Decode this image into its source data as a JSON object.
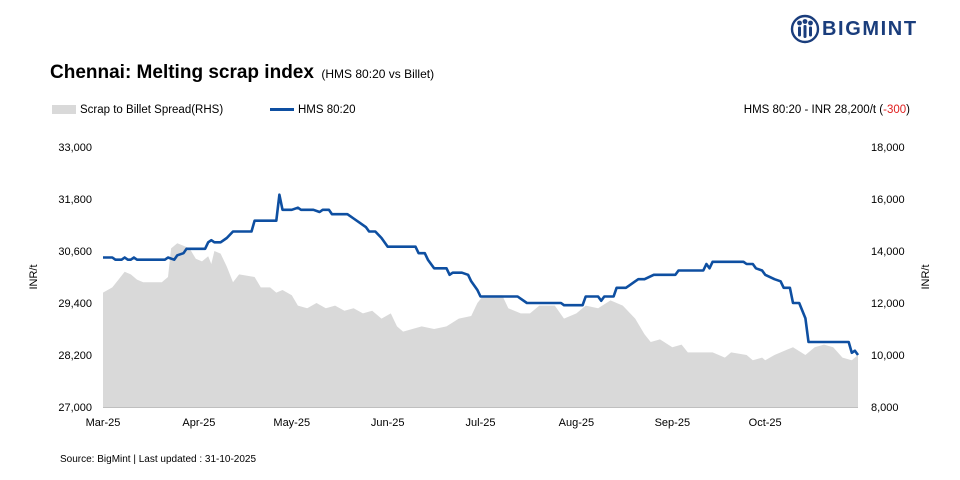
{
  "brand": {
    "name": "BIGMINT",
    "icon": "bigmint-logo-icon",
    "color": "#1a3d7c"
  },
  "title": {
    "main": "Chennai: Melting scrap index",
    "sub": "(HMS 80:20 vs Billet)"
  },
  "legend": {
    "area_label": "Scrap to Billet Spread(RHS)",
    "line_label": "HMS 80:20"
  },
  "price_note": {
    "prefix": "HMS 80:20 - INR 28,200/t (",
    "change": "-300",
    "suffix": ")"
  },
  "source": "Source: BigMint | Last updated : 31-10-2025",
  "colors": {
    "line": "#0e4fa1",
    "area": "#d9d9d9",
    "negative": "#e02020"
  },
  "chart_data": {
    "type": "line",
    "x_ticks": [
      "Mar-25",
      "Apr-25",
      "May-25",
      "Jun-25",
      "Jul-25",
      "Aug-25",
      "Sep-25",
      "Oct-25"
    ],
    "y_left": {
      "label": "INR/t",
      "ylim": [
        27000,
        33000
      ],
      "ticks": [
        "27,000",
        "28,200",
        "29,400",
        "30,600",
        "31,800",
        "33,000"
      ]
    },
    "y_right": {
      "label": "INR/t",
      "ylim": [
        8000,
        18000
      ],
      "ticks": [
        "8,000",
        "10,000",
        "12,000",
        "14,000",
        "16,000",
        "18,000"
      ]
    },
    "series": [
      {
        "name": "HMS 80:20",
        "axis": "left",
        "kind": "line",
        "points": [
          [
            "2025-03-01",
            30450
          ],
          [
            "2025-03-04",
            30450
          ],
          [
            "2025-03-05",
            30400
          ],
          [
            "2025-03-07",
            30400
          ],
          [
            "2025-03-08",
            30450
          ],
          [
            "2025-03-09",
            30400
          ],
          [
            "2025-03-10",
            30400
          ],
          [
            "2025-03-11",
            30450
          ],
          [
            "2025-03-12",
            30400
          ],
          [
            "2025-03-21",
            30400
          ],
          [
            "2025-03-22",
            30450
          ],
          [
            "2025-03-24",
            30400
          ],
          [
            "2025-03-25",
            30500
          ],
          [
            "2025-03-27",
            30550
          ],
          [
            "2025-03-28",
            30650
          ],
          [
            "2025-04-03",
            30650
          ],
          [
            "2025-04-04",
            30800
          ],
          [
            "2025-04-05",
            30850
          ],
          [
            "2025-04-06",
            30800
          ],
          [
            "2025-04-08",
            30800
          ],
          [
            "2025-04-10",
            30900
          ],
          [
            "2025-04-12",
            31050
          ],
          [
            "2025-04-18",
            31050
          ],
          [
            "2025-04-19",
            31300
          ],
          [
            "2025-04-26",
            31300
          ],
          [
            "2025-04-27",
            31900
          ],
          [
            "2025-04-28",
            31550
          ],
          [
            "2025-05-01",
            31550
          ],
          [
            "2025-05-03",
            31600
          ],
          [
            "2025-05-04",
            31550
          ],
          [
            "2025-05-08",
            31550
          ],
          [
            "2025-05-10",
            31500
          ],
          [
            "2025-05-11",
            31550
          ],
          [
            "2025-05-13",
            31550
          ],
          [
            "2025-05-14",
            31450
          ],
          [
            "2025-05-19",
            31450
          ],
          [
            "2025-05-20",
            31400
          ],
          [
            "2025-05-21",
            31350
          ],
          [
            "2025-05-23",
            31250
          ],
          [
            "2025-05-25",
            31150
          ],
          [
            "2025-05-26",
            31050
          ],
          [
            "2025-05-28",
            31050
          ],
          [
            "2025-05-30",
            30900
          ],
          [
            "2025-06-01",
            30700
          ],
          [
            "2025-06-10",
            30700
          ],
          [
            "2025-06-11",
            30550
          ],
          [
            "2025-06-13",
            30550
          ],
          [
            "2025-06-14",
            30400
          ],
          [
            "2025-06-16",
            30200
          ],
          [
            "2025-06-20",
            30200
          ],
          [
            "2025-06-21",
            30050
          ],
          [
            "2025-06-22",
            30100
          ],
          [
            "2025-06-25",
            30100
          ],
          [
            "2025-06-27",
            30050
          ],
          [
            "2025-06-28",
            29900
          ],
          [
            "2025-06-30",
            29700
          ],
          [
            "2025-07-01",
            29550
          ],
          [
            "2025-07-13",
            29550
          ],
          [
            "2025-07-14",
            29500
          ],
          [
            "2025-07-16",
            29400
          ],
          [
            "2025-07-27",
            29400
          ],
          [
            "2025-07-28",
            29350
          ],
          [
            "2025-08-03",
            29350
          ],
          [
            "2025-08-04",
            29550
          ],
          [
            "2025-08-08",
            29550
          ],
          [
            "2025-08-09",
            29450
          ],
          [
            "2025-08-10",
            29550
          ],
          [
            "2025-08-13",
            29550
          ],
          [
            "2025-08-14",
            29750
          ],
          [
            "2025-08-17",
            29750
          ],
          [
            "2025-08-18",
            29800
          ],
          [
            "2025-08-20",
            29900
          ],
          [
            "2025-08-21",
            29950
          ],
          [
            "2025-08-23",
            29950
          ],
          [
            "2025-08-26",
            30050
          ],
          [
            "2025-09-02",
            30050
          ],
          [
            "2025-09-03",
            30150
          ],
          [
            "2025-09-11",
            30150
          ],
          [
            "2025-09-12",
            30300
          ],
          [
            "2025-09-13",
            30200
          ],
          [
            "2025-09-14",
            30350
          ],
          [
            "2025-09-24",
            30350
          ],
          [
            "2025-09-25",
            30300
          ],
          [
            "2025-09-27",
            30300
          ],
          [
            "2025-09-28",
            30200
          ],
          [
            "2025-09-30",
            30150
          ],
          [
            "2025-10-01",
            30050
          ],
          [
            "2025-10-04",
            29950
          ],
          [
            "2025-10-06",
            29900
          ],
          [
            "2025-10-07",
            29750
          ],
          [
            "2025-10-09",
            29750
          ],
          [
            "2025-10-10",
            29400
          ],
          [
            "2025-10-12",
            29400
          ],
          [
            "2025-10-14",
            29050
          ],
          [
            "2025-10-15",
            28500
          ],
          [
            "2025-10-28",
            28500
          ],
          [
            "2025-10-29",
            28250
          ],
          [
            "2025-10-30",
            28300
          ],
          [
            "2025-10-31",
            28200
          ]
        ]
      },
      {
        "name": "Scrap to Billet Spread(RHS)",
        "axis": "right",
        "kind": "area",
        "points": [
          [
            "2025-03-01",
            12400
          ],
          [
            "2025-03-04",
            12600
          ],
          [
            "2025-03-06",
            12900
          ],
          [
            "2025-03-08",
            13200
          ],
          [
            "2025-03-10",
            13100
          ],
          [
            "2025-03-12",
            12900
          ],
          [
            "2025-03-14",
            12800
          ],
          [
            "2025-03-20",
            12800
          ],
          [
            "2025-03-22",
            13000
          ],
          [
            "2025-03-23",
            14100
          ],
          [
            "2025-03-25",
            14300
          ],
          [
            "2025-03-27",
            14200
          ],
          [
            "2025-03-29",
            14100
          ],
          [
            "2025-03-31",
            13700
          ],
          [
            "2025-04-02",
            13600
          ],
          [
            "2025-04-04",
            13800
          ],
          [
            "2025-04-05",
            13500
          ],
          [
            "2025-04-06",
            14000
          ],
          [
            "2025-04-08",
            13900
          ],
          [
            "2025-04-10",
            13400
          ],
          [
            "2025-04-12",
            12800
          ],
          [
            "2025-04-14",
            13100
          ],
          [
            "2025-04-19",
            13000
          ],
          [
            "2025-04-21",
            12600
          ],
          [
            "2025-04-24",
            12600
          ],
          [
            "2025-04-26",
            12400
          ],
          [
            "2025-04-28",
            12500
          ],
          [
            "2025-05-01",
            12300
          ],
          [
            "2025-05-03",
            11900
          ],
          [
            "2025-05-06",
            11800
          ],
          [
            "2025-05-09",
            12000
          ],
          [
            "2025-05-12",
            11800
          ],
          [
            "2025-05-15",
            11900
          ],
          [
            "2025-05-18",
            11700
          ],
          [
            "2025-05-21",
            11800
          ],
          [
            "2025-05-24",
            11600
          ],
          [
            "2025-05-27",
            11700
          ],
          [
            "2025-05-30",
            11400
          ],
          [
            "2025-06-02",
            11600
          ],
          [
            "2025-06-04",
            11100
          ],
          [
            "2025-06-06",
            10900
          ],
          [
            "2025-06-12",
            11100
          ],
          [
            "2025-06-16",
            11000
          ],
          [
            "2025-06-20",
            11100
          ],
          [
            "2025-06-24",
            11400
          ],
          [
            "2025-06-28",
            11500
          ],
          [
            "2025-06-30",
            12000
          ],
          [
            "2025-07-02",
            12300
          ],
          [
            "2025-07-08",
            12300
          ],
          [
            "2025-07-10",
            11800
          ],
          [
            "2025-07-14",
            11600
          ],
          [
            "2025-07-17",
            11600
          ],
          [
            "2025-07-20",
            11900
          ],
          [
            "2025-07-25",
            11900
          ],
          [
            "2025-07-28",
            11400
          ],
          [
            "2025-08-01",
            11600
          ],
          [
            "2025-08-04",
            11900
          ],
          [
            "2025-08-08",
            11800
          ],
          [
            "2025-08-12",
            12100
          ],
          [
            "2025-08-16",
            11900
          ],
          [
            "2025-08-20",
            11400
          ],
          [
            "2025-08-23",
            10800
          ],
          [
            "2025-08-25",
            10500
          ],
          [
            "2025-08-28",
            10600
          ],
          [
            "2025-09-01",
            10300
          ],
          [
            "2025-09-04",
            10400
          ],
          [
            "2025-09-06",
            10100
          ],
          [
            "2025-09-14",
            10100
          ],
          [
            "2025-09-16",
            10000
          ],
          [
            "2025-09-18",
            9900
          ],
          [
            "2025-09-20",
            10100
          ],
          [
            "2025-09-25",
            10000
          ],
          [
            "2025-09-27",
            9800
          ],
          [
            "2025-09-30",
            9900
          ],
          [
            "2025-10-01",
            9800
          ],
          [
            "2025-10-04",
            10000
          ],
          [
            "2025-10-08",
            10200
          ],
          [
            "2025-10-10",
            10300
          ],
          [
            "2025-10-14",
            10000
          ],
          [
            "2025-10-17",
            10300
          ],
          [
            "2025-10-20",
            10400
          ],
          [
            "2025-10-23",
            10300
          ],
          [
            "2025-10-26",
            9900
          ],
          [
            "2025-10-29",
            9800
          ],
          [
            "2025-10-31",
            10000
          ]
        ]
      }
    ],
    "grid": false,
    "legend_position": "top-left"
  }
}
